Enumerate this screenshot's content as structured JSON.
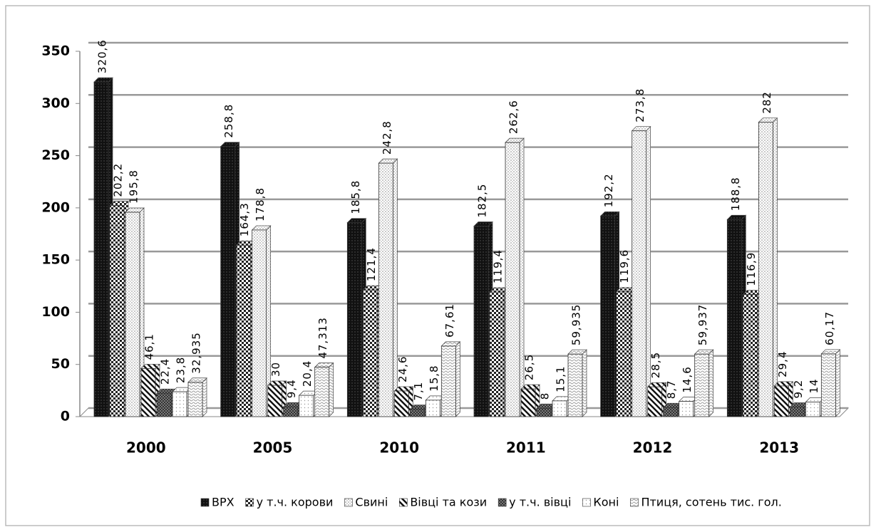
{
  "chart_data": {
    "type": "bar",
    "categories": [
      "2000",
      "2005",
      "2010",
      "2011",
      "2012",
      "2013"
    ],
    "series": [
      {
        "name": "ВРХ",
        "color": "#111111",
        "values": [
          320.6,
          258.8,
          185.8,
          182.5,
          192.2,
          188.8
        ],
        "value_labels": [
          "320,6",
          "258,8",
          "185,8",
          "182,5",
          "192,2",
          "188,8"
        ]
      },
      {
        "name": "у т.ч. корови",
        "color": "#222222",
        "values": [
          202.2,
          164.3,
          121.4,
          119.4,
          119.6,
          116.9
        ],
        "value_labels": [
          "202,2",
          "164,3",
          "121,4",
          "119,4",
          "119,6",
          "116,9"
        ]
      },
      {
        "name": "Свині",
        "color": "#ffffff",
        "values": [
          195.8,
          178.8,
          242.8,
          262.6,
          273.8,
          282
        ],
        "value_labels": [
          "195,8",
          "178,8",
          "242,8",
          "262,6",
          "273,8",
          "282"
        ]
      },
      {
        "name": "Вівці та кози",
        "color": "#ffffff",
        "values": [
          46.1,
          30,
          24.6,
          26.5,
          28.5,
          29.4
        ],
        "value_labels": [
          "46,1",
          "30",
          "24,6",
          "26,5",
          "28,5",
          "29,4"
        ]
      },
      {
        "name": "у т.ч. вівці",
        "color": "#333333",
        "values": [
          22.4,
          9.4,
          7.1,
          8,
          8.7,
          9.2
        ],
        "value_labels": [
          "22,4",
          "9,4",
          "7,1",
          "8",
          "8,7",
          "9,2"
        ]
      },
      {
        "name": "Коні",
        "color": "#ffffff",
        "values": [
          23.8,
          20.4,
          15.8,
          15.1,
          14.6,
          14
        ],
        "value_labels": [
          "23,8",
          "20,4",
          "15,8",
          "15,1",
          "14,6",
          "14"
        ]
      },
      {
        "name": "Птиця, сотень тис. гол.",
        "color": "#ffffff",
        "values": [
          32.935,
          47.313,
          67.61,
          59.935,
          59.937,
          60.17
        ],
        "value_labels": [
          "32,935",
          "47,313",
          "67,61",
          "59,935",
          "59,937",
          "60,17"
        ]
      }
    ],
    "ylim": [
      0,
      350
    ],
    "yticks": [
      0,
      50,
      100,
      150,
      200,
      250,
      300,
      350
    ],
    "grid": true,
    "legend": "bottom"
  }
}
